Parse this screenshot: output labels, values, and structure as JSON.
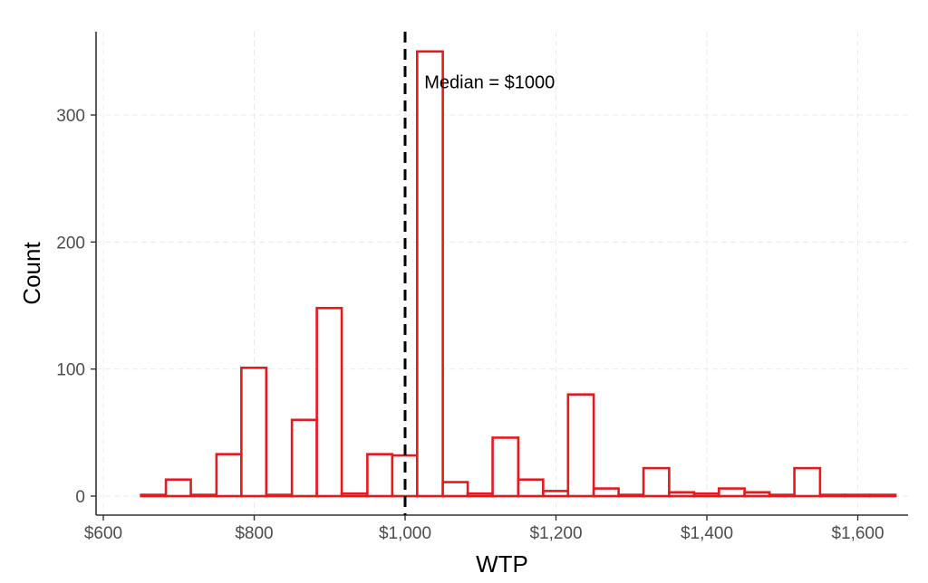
{
  "chart_data": {
    "type": "bar",
    "subtype": "histogram",
    "title": "",
    "xlabel": "WTP",
    "ylabel": "Count",
    "xlim": [
      600,
      1640
    ],
    "ylim": [
      0,
      360
    ],
    "x_ticks": [
      600,
      800,
      1000,
      1200,
      1400,
      1600
    ],
    "x_tick_labels": [
      "$600",
      "$800",
      "$1,000",
      "$1,200",
      "$1,400",
      "$1,600"
    ],
    "y_ticks": [
      0,
      100,
      200,
      300
    ],
    "y_tick_labels": [
      "0",
      "100",
      "200",
      "300"
    ],
    "grid": true,
    "bin_width": 33.3,
    "bins": [
      {
        "start": 650,
        "end": 683,
        "count": 1
      },
      {
        "start": 683,
        "end": 716,
        "count": 13
      },
      {
        "start": 716,
        "end": 750,
        "count": 1
      },
      {
        "start": 750,
        "end": 783,
        "count": 33
      },
      {
        "start": 783,
        "end": 816,
        "count": 101
      },
      {
        "start": 816,
        "end": 850,
        "count": 1
      },
      {
        "start": 850,
        "end": 883,
        "count": 60
      },
      {
        "start": 883,
        "end": 916,
        "count": 148
      },
      {
        "start": 916,
        "end": 950,
        "count": 2
      },
      {
        "start": 950,
        "end": 983,
        "count": 33
      },
      {
        "start": 983,
        "end": 1016,
        "count": 32
      },
      {
        "start": 1016,
        "end": 1050,
        "count": 350
      },
      {
        "start": 1050,
        "end": 1083,
        "count": 11
      },
      {
        "start": 1083,
        "end": 1116,
        "count": 2
      },
      {
        "start": 1116,
        "end": 1150,
        "count": 46
      },
      {
        "start": 1150,
        "end": 1183,
        "count": 13
      },
      {
        "start": 1183,
        "end": 1216,
        "count": 4
      },
      {
        "start": 1216,
        "end": 1250,
        "count": 80
      },
      {
        "start": 1250,
        "end": 1283,
        "count": 6
      },
      {
        "start": 1283,
        "end": 1316,
        "count": 1
      },
      {
        "start": 1316,
        "end": 1350,
        "count": 22
      },
      {
        "start": 1350,
        "end": 1383,
        "count": 3
      },
      {
        "start": 1383,
        "end": 1416,
        "count": 2
      },
      {
        "start": 1416,
        "end": 1450,
        "count": 6
      },
      {
        "start": 1450,
        "end": 1483,
        "count": 3
      },
      {
        "start": 1483,
        "end": 1516,
        "count": 1
      },
      {
        "start": 1516,
        "end": 1550,
        "count": 22
      },
      {
        "start": 1550,
        "end": 1583,
        "count": 1
      },
      {
        "start": 1583,
        "end": 1616,
        "count": 1
      },
      {
        "start": 1616,
        "end": 1650,
        "count": 1
      }
    ],
    "bar_color": "#e41a1c",
    "median_line": {
      "x": 1000,
      "style": "dashed",
      "color": "#000000"
    },
    "annotation": {
      "text": "Median = $1000",
      "x": 1100,
      "y": 326
    }
  }
}
